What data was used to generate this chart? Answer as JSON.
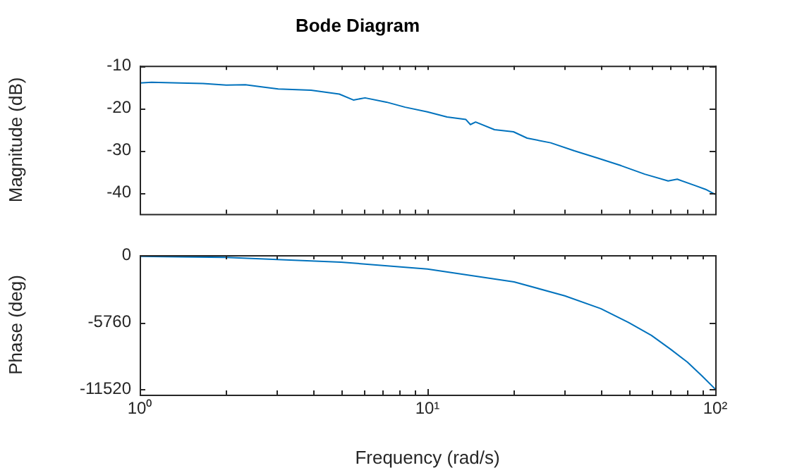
{
  "chart_data": [
    {
      "type": "line",
      "title": "Bode Diagram",
      "ylabel": "Magnitude (dB)",
      "log": "x",
      "grid": false,
      "legend": false,
      "marker": "none",
      "tick_labels": "y",
      "x": [
        1,
        1.1,
        1.38,
        1.66,
        2.0,
        2.33,
        2.71,
        3.03,
        3.94,
        4.94,
        5.53,
        6.07,
        7.2,
        8.37,
        10,
        11.7,
        13.6,
        14.1,
        14.7,
        17.1,
        19.9,
        22.2,
        26.8,
        32.4,
        39.0,
        47.1,
        56.9,
        68.6,
        73.8,
        85.9,
        92.6,
        100
      ],
      "series": [
        {
          "color": "#0072bd",
          "values": [
            -14.1,
            -13.9,
            -14.1,
            -14.2,
            -14.6,
            -14.5,
            -15.1,
            -15.5,
            -15.8,
            -16.7,
            -18.1,
            -17.6,
            -18.6,
            -19.8,
            -20.9,
            -22.1,
            -22.7,
            -23.9,
            -23.3,
            -25.1,
            -25.6,
            -27.1,
            -28.2,
            -30.1,
            -31.8,
            -33.6,
            -35.6,
            -37.2,
            -36.8,
            -38.4,
            -39.2,
            -40.4
          ]
        }
      ],
      "xlim": [
        1,
        100
      ],
      "xticks": [
        {
          "value": 1,
          "label": null
        },
        {
          "value": 2,
          "label": null
        },
        {
          "value": 3,
          "label": null
        },
        {
          "value": 4,
          "label": null
        },
        {
          "value": 5,
          "label": null
        },
        {
          "value": 6,
          "label": null
        },
        {
          "value": 7,
          "label": null
        },
        {
          "value": 8,
          "label": null
        },
        {
          "value": 9,
          "label": null
        },
        {
          "value": 10,
          "label": null
        },
        {
          "value": 20,
          "label": null
        },
        {
          "value": 30,
          "label": null
        },
        {
          "value": 40,
          "label": null
        },
        {
          "value": 50,
          "label": null
        },
        {
          "value": 60,
          "label": null
        },
        {
          "value": 70,
          "label": null
        },
        {
          "value": 80,
          "label": null
        },
        {
          "value": 90,
          "label": null
        },
        {
          "value": 100,
          "label": null
        }
      ],
      "ylim": [
        -45,
        -10
      ],
      "yticks": [
        -40,
        -30,
        -20,
        -10
      ]
    },
    {
      "type": "line",
      "xlabel": "Frequency (rad/s)",
      "ylabel": "Phase (deg)",
      "log": "x",
      "grid": false,
      "legend": false,
      "marker": "none",
      "x": [
        1,
        2,
        5,
        10,
        20,
        30,
        40,
        50,
        60,
        70,
        80,
        90,
        100
      ],
      "series": [
        {
          "color": "#0072bd",
          "values": [
            -100,
            -200,
            -600,
            -1200,
            -2300,
            -3500,
            -4600,
            -5800,
            -6900,
            -8100,
            -9200,
            -10400,
            -11520
          ]
        }
      ],
      "xlim": [
        1,
        100
      ],
      "xticks": [
        {
          "value": 1,
          "label": "10⁰"
        },
        {
          "value": 2,
          "label": null
        },
        {
          "value": 3,
          "label": null
        },
        {
          "value": 4,
          "label": null
        },
        {
          "value": 5,
          "label": null
        },
        {
          "value": 6,
          "label": null
        },
        {
          "value": 7,
          "label": null
        },
        {
          "value": 8,
          "label": null
        },
        {
          "value": 9,
          "label": null
        },
        {
          "value": 10,
          "label": "10¹"
        },
        {
          "value": 20,
          "label": null
        },
        {
          "value": 30,
          "label": null
        },
        {
          "value": 40,
          "label": null
        },
        {
          "value": 50,
          "label": null
        },
        {
          "value": 60,
          "label": null
        },
        {
          "value": 70,
          "label": null
        },
        {
          "value": 80,
          "label": null
        },
        {
          "value": 90,
          "label": null
        },
        {
          "value": 100,
          "label": "10²"
        }
      ],
      "ylim": [
        -12000,
        0
      ],
      "yticks": [
        -11520,
        -5760,
        0
      ]
    }
  ]
}
